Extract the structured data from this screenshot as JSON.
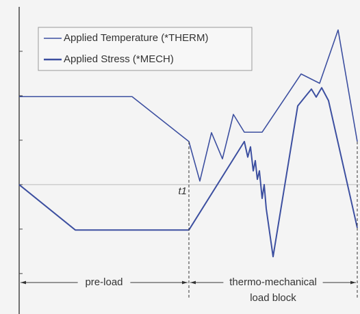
{
  "chart_data": {
    "type": "line",
    "series": [
      {
        "name": "Applied Temperature (*THERM)",
        "color": "#3c4fa0",
        "x": [
          0,
          16.5,
          24.8,
          26.4,
          28.1,
          29.7,
          31.3,
          32.9,
          35.5,
          41.2,
          43.9,
          46.6,
          49.4
        ],
        "values": [
          1.98,
          1.98,
          0.97,
          0.08,
          1.17,
          0.58,
          1.58,
          1.18,
          1.18,
          2.49,
          2.28,
          3.48,
          0.97
        ]
      },
      {
        "name": "Applied Stress (*MECH)",
        "color": "#3c4fa0",
        "x": [
          0,
          8.2,
          24.8,
          32.9,
          33.4,
          33.8,
          34.2,
          34.5,
          34.8,
          35.1,
          35.5,
          35.8,
          36.1,
          37.1,
          40.7,
          41.9,
          42.7,
          43.4,
          44.2,
          45.2,
          49.4
        ],
        "values": [
          0,
          -1.02,
          -1.02,
          0.97,
          0.62,
          0.85,
          0.31,
          0.54,
          0.12,
          0.31,
          -0.31,
          0,
          -0.54,
          -1.62,
          1.77,
          2.0,
          2.15,
          1.97,
          2.18,
          1.89,
          -0.97
        ]
      }
    ],
    "xlim": [
      0,
      49.8
    ],
    "ylim": [
      -2.91,
      4.0
    ],
    "yticks": [
      -2,
      -1,
      0,
      1,
      2,
      3
    ],
    "annotations": [
      {
        "text": "t1",
        "x": 24.8
      }
    ],
    "regions": [
      {
        "label": [
          "pre-load"
        ],
        "x": [
          0,
          24.8
        ]
      },
      {
        "label": [
          "thermo-mechanical",
          "load block"
        ],
        "x": [
          24.8,
          49.4
        ]
      }
    ]
  }
}
